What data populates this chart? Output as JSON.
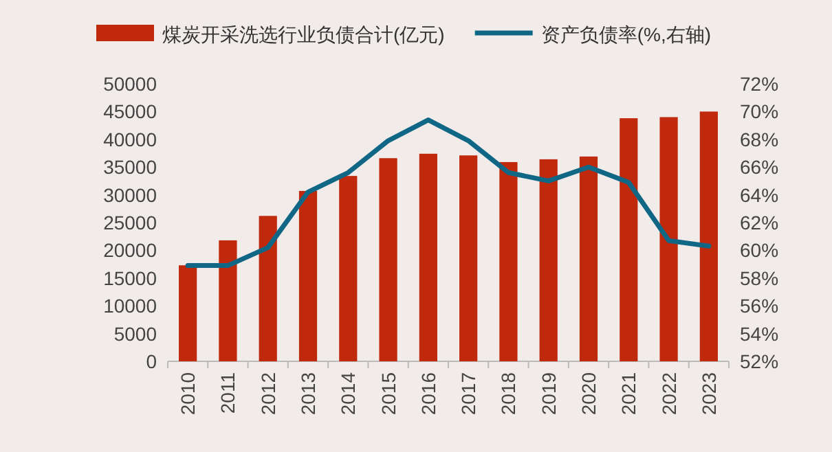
{
  "chart_data": {
    "type": "bar",
    "categories": [
      "2010",
      "2011",
      "2012",
      "2013",
      "2014",
      "2015",
      "2016",
      "2017",
      "2018",
      "2019",
      "2020",
      "2021",
      "2022",
      "2023"
    ],
    "series": [
      {
        "name": "煤炭开采洗选行业负债合计(亿元)",
        "color": "#c0290c",
        "values": [
          17300,
          21800,
          26200,
          30700,
          33400,
          36600,
          37400,
          37100,
          35900,
          36400,
          36900,
          43800,
          44000,
          45000
        ]
      },
      {
        "name": "资产负债率(%,右轴)",
        "type": "line",
        "axis": "y2",
        "color": "#0f6685",
        "values": [
          58.9,
          58.9,
          60.2,
          64.2,
          65.6,
          67.9,
          69.4,
          67.9,
          65.6,
          65.0,
          66.0,
          64.9,
          60.7,
          60.3
        ]
      }
    ],
    "ylim": [
      0,
      50000
    ],
    "yticks": [
      0,
      5000,
      10000,
      15000,
      20000,
      25000,
      30000,
      35000,
      40000,
      45000,
      50000
    ],
    "y2lim": [
      52,
      72
    ],
    "y2ticks": [
      {
        "value": 52,
        "label": "52%"
      },
      {
        "value": 54,
        "label": "54%"
      },
      {
        "value": 56,
        "label": "56%"
      },
      {
        "value": 58,
        "label": "58%"
      },
      {
        "value": 60,
        "label": "60%"
      },
      {
        "value": 62,
        "label": "62%"
      },
      {
        "value": 64,
        "label": "64%"
      },
      {
        "value": 66,
        "label": "66%"
      },
      {
        "value": 68,
        "label": "68%"
      },
      {
        "value": 70,
        "label": "70%"
      },
      {
        "value": 72,
        "label": "72%"
      }
    ],
    "grid": false,
    "legend": "top",
    "marker": "none"
  }
}
